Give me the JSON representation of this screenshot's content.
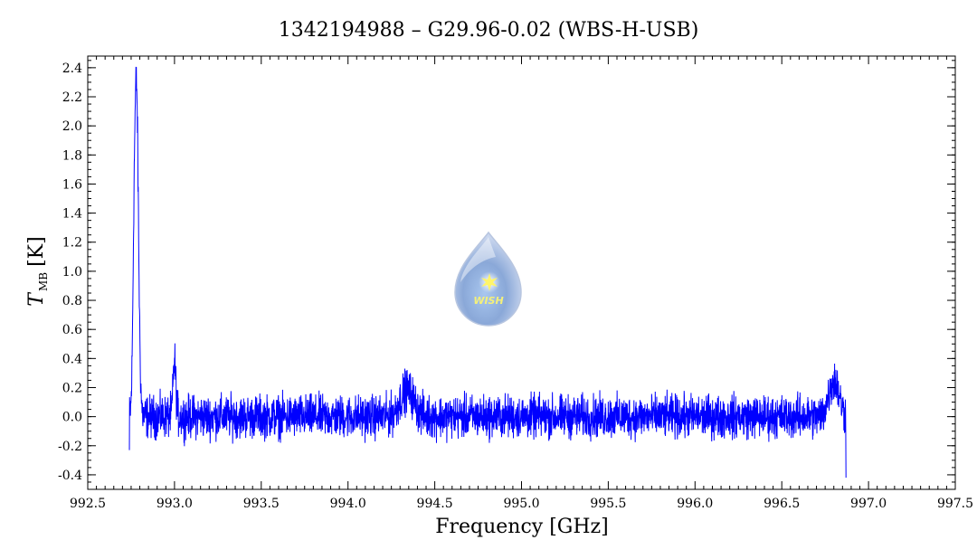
{
  "chart_data": {
    "type": "line",
    "title": "1342194988 – G29.96-0.02 (WBS-H-USB)",
    "xlabel": "Frequency [GHz]",
    "ylabel_main": "T",
    "ylabel_sub": "MB",
    "ylabel_unit": "[K]",
    "xlim": [
      992.5,
      997.5
    ],
    "ylim": [
      -0.5,
      2.48
    ],
    "xticks": [
      "992.5",
      "993.0",
      "993.5",
      "994.0",
      "994.5",
      "995.0",
      "995.5",
      "996.0",
      "996.5",
      "997.0",
      "997.5"
    ],
    "yticks": [
      "-0.4",
      "-0.2",
      "0.0",
      "0.2",
      "0.4",
      "0.6",
      "0.8",
      "1.0",
      "1.2",
      "1.4",
      "1.6",
      "1.8",
      "2.0",
      "2.2",
      "2.4"
    ],
    "grid": false,
    "series": [
      {
        "color": "#0000ff",
        "x_range": [
          992.74,
          996.87
        ],
        "noise_rms": 0.065,
        "noise_peak": 0.2,
        "features": [
          {
            "center": 992.78,
            "peak": 2.3,
            "width": 0.012
          },
          {
            "center": 992.765,
            "peak": 0.35,
            "width": 0.006
          },
          {
            "center": 993.0,
            "peak": 0.38,
            "width": 0.008
          },
          {
            "center": 994.34,
            "peak": 0.18,
            "width": 0.04
          },
          {
            "center": 996.8,
            "peak": 0.25,
            "width": 0.03
          }
        ],
        "x_min_edge": 996.87,
        "y_min_edge": -0.42
      }
    ]
  },
  "logo": {
    "icon": "wish-drop-logo",
    "text": "WISH"
  }
}
